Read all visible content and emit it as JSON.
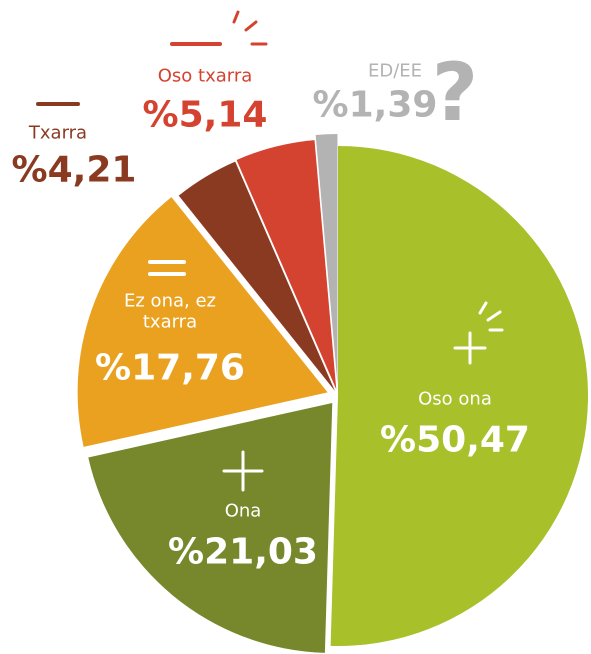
{
  "chart_data": {
    "type": "pie",
    "categories": [
      "Oso ona",
      "Ona",
      "Ez ona, ez txarra",
      "Txarra",
      "Oso txarra",
      "ED/EE"
    ],
    "values": [
      50.47,
      21.03,
      17.76,
      4.21,
      5.14,
      1.39
    ],
    "value_labels": [
      "%50,47",
      "%21,03",
      "%17,76",
      "%4,21",
      "%5,14",
      "%1,39"
    ],
    "colors": [
      "#a8c02a",
      "#76882b",
      "#e9a11f",
      "#8b3a22",
      "#d4432f",
      "#b3b3b3"
    ]
  }
}
